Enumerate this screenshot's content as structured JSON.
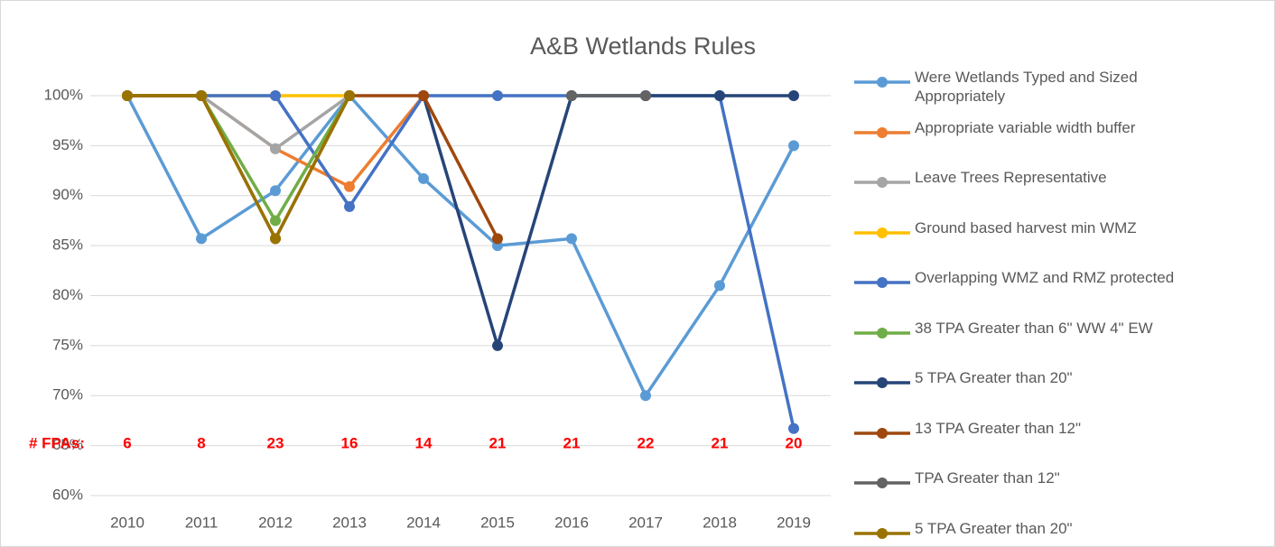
{
  "chart_data": {
    "type": "line",
    "title": "A&B Wetlands Rules",
    "categories": [
      "2010",
      "2011",
      "2012",
      "2013",
      "2014",
      "2015",
      "2016",
      "2017",
      "2018",
      "2019"
    ],
    "ylim": [
      60,
      100
    ],
    "yticks": [
      {
        "value": 60,
        "label": "60%"
      },
      {
        "value": 65,
        "label": "65%"
      },
      {
        "value": 70,
        "label": "70%"
      },
      {
        "value": 75,
        "label": "75%"
      },
      {
        "value": 80,
        "label": "80%"
      },
      {
        "value": 85,
        "label": "85%"
      },
      {
        "value": 90,
        "label": "90%"
      },
      {
        "value": 95,
        "label": "95%"
      },
      {
        "value": 100,
        "label": "100%"
      }
    ],
    "grid": true,
    "legend": "right",
    "annotation_label": "# FPAs:",
    "annotation_values": [
      6,
      8,
      23,
      16,
      14,
      21,
      21,
      22,
      21,
      20
    ],
    "annotation_color": "#ff0000",
    "series": [
      {
        "name": "Were Wetlands Typed and Sized Appropriately",
        "color": "#5b9bd5",
        "values": [
          100,
          85.7,
          90.5,
          100,
          91.7,
          85,
          85.7,
          70,
          81,
          95
        ]
      },
      {
        "name": "Appropriate variable width buffer",
        "color": "#ed7d31",
        "values": [
          100,
          100,
          94.7,
          90.9,
          100,
          null,
          null,
          null,
          null,
          null
        ]
      },
      {
        "name": "Leave Trees Representative",
        "color": "#a5a5a5",
        "values": [
          100,
          100,
          94.7,
          100,
          null,
          null,
          null,
          null,
          null,
          null
        ]
      },
      {
        "name": "Ground based harvest min WMZ",
        "color": "#ffc000",
        "values": [
          100,
          100,
          100,
          100,
          null,
          null,
          null,
          null,
          null,
          null
        ]
      },
      {
        "name": "Overlapping WMZ and RMZ protected",
        "color": "#4472c4",
        "values": [
          100,
          100,
          100,
          88.9,
          100,
          100,
          100,
          100,
          100,
          66.7
        ]
      },
      {
        "name": "38 TPA Greater than 6\" WW 4\" EW",
        "color": "#70ad47",
        "values": [
          100,
          100,
          87.5,
          100,
          null,
          null,
          null,
          null,
          null,
          null
        ]
      },
      {
        "name": "5 TPA Greater than 20\"",
        "color": "#264478",
        "values": [
          null,
          null,
          null,
          null,
          100,
          75,
          100,
          100,
          100,
          100
        ]
      },
      {
        "name": "13 TPA Greater than 12\"",
        "color": "#9e480e",
        "values": [
          100,
          100,
          85.7,
          100,
          100,
          85.7,
          null,
          null,
          null,
          null
        ]
      },
      {
        "name": "TPA Greater than 12\"",
        "color": "#636363",
        "values": [
          null,
          null,
          null,
          null,
          null,
          null,
          100,
          100,
          null,
          null
        ]
      },
      {
        "name": "5 TPA Greater than 20\"",
        "color": "#997300",
        "values": [
          100,
          100,
          85.7,
          100,
          null,
          null,
          null,
          null,
          null,
          null
        ]
      }
    ]
  }
}
